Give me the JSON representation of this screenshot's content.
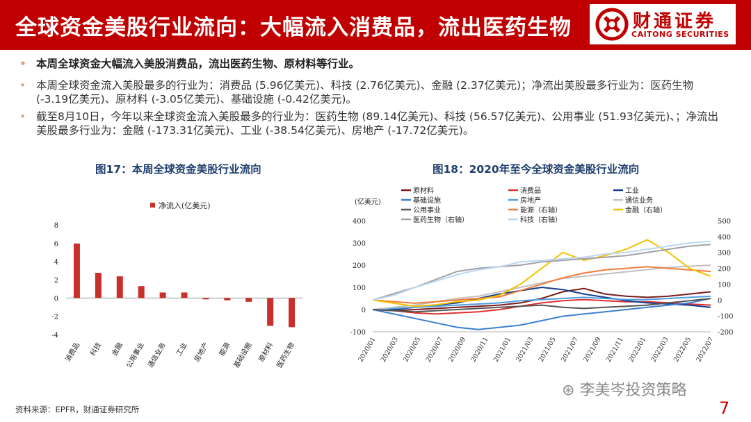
{
  "header": {
    "title": "全球资金美股行业流向：大幅流入消费品，流出医药生物"
  },
  "logo": {
    "name_cn": "财通证券",
    "name_en": "CAITONG SECURITIES"
  },
  "bullets": [
    {
      "text": "本周全球资金大幅流入美股消费品，流出医药生物、原材料等行业。"
    },
    {
      "text": "本周全球资金流入美股最多的行业为：消费品 (5.96亿美元)、科技 (2.76亿美元)、金融 (2.37亿美元)；净流出美股最多行业为：医药生物 (-3.19亿美元)、原材料 (-3.05亿美元)、基础设施 (-0.42亿美元)。"
    },
    {
      "text": "截至8月10日，今年以来全球资金流入美股最多的行业为：医药生物 (89.14亿美元)、科技 (56.57亿美元)、公用事业 (51.93亿美元)、；净流出美股最多行业为：金融 (-173.31亿美元)、工业 (-38.54亿美元)、房地产 (-17.72亿美元)。"
    }
  ],
  "chart_data": [
    {
      "type": "bar",
      "title": "图17：本周全球资金美股行业流向",
      "legend": "净流入(亿美元)",
      "categories": [
        "消费品",
        "科技",
        "金融",
        "公用事业",
        "通信业务",
        "工业",
        "房地产",
        "能源",
        "基础设施",
        "原材料",
        "医药生物"
      ],
      "values": [
        5.96,
        2.76,
        2.37,
        1.3,
        0.6,
        0.6,
        -0.15,
        -0.25,
        -0.42,
        -3.05,
        -3.19
      ],
      "yticks": [
        "8",
        "6",
        "4",
        "2",
        "0",
        "-2",
        "-4"
      ],
      "ylim": [
        -4,
        8
      ],
      "color": "#c9302c"
    },
    {
      "type": "line",
      "title": "图18：2020年至今全球资金美股行业流向",
      "ylabel": "(亿美元)",
      "ylim": [
        -100,
        400
      ],
      "y2lim": [
        -200,
        500
      ],
      "yticks": [
        "400",
        "300",
        "200",
        "100",
        "0",
        "-100"
      ],
      "y2ticks": [
        "500",
        "400",
        "300",
        "200",
        "100",
        "0",
        "-100",
        "-200"
      ],
      "xticks": [
        "2020/01",
        "2020/03",
        "2020/05",
        "2020/07",
        "2020/09",
        "2020/11",
        "2021/01",
        "2021/03",
        "2021/05",
        "2021/07",
        "2021/09",
        "2021/11",
        "2022/01",
        "2022/03",
        "2022/05",
        "2022/07"
      ],
      "legend": [
        "原材料",
        "消费品",
        "工业",
        "基础设施",
        "房地产",
        "通信业务",
        "公用事业",
        "能源（右轴）",
        "金融（右轴）",
        "医药生物（右轴）",
        "科技（右轴）"
      ],
      "series": [
        {
          "name": "原材料",
          "color": "#7b1c1c",
          "axis": "left",
          "values": [
            0,
            -5,
            0,
            5,
            10,
            15,
            20,
            30,
            50,
            80,
            95,
            70,
            60,
            55,
            60,
            70,
            80
          ]
        },
        {
          "name": "消费品",
          "color": "#e03030",
          "axis": "left",
          "values": [
            0,
            -5,
            -15,
            -20,
            -15,
            -10,
            0,
            15,
            30,
            40,
            45,
            40,
            35,
            35,
            30,
            25,
            20
          ]
        },
        {
          "name": "工业",
          "color": "#123e8a",
          "axis": "left",
          "values": [
            0,
            0,
            10,
            20,
            30,
            50,
            70,
            85,
            100,
            90,
            70,
            55,
            40,
            30,
            25,
            20,
            10
          ]
        },
        {
          "name": "基础设施",
          "color": "#3b7fd0",
          "axis": "left",
          "values": [
            0,
            -20,
            -40,
            -60,
            -80,
            -90,
            -80,
            -70,
            -50,
            -30,
            -20,
            -10,
            0,
            10,
            20,
            30,
            50
          ]
        },
        {
          "name": "房地产",
          "color": "#4f9de0",
          "axis": "left",
          "values": [
            0,
            5,
            10,
            15,
            20,
            25,
            30,
            40,
            45,
            50,
            55,
            50,
            45,
            45,
            50,
            55,
            60
          ]
        },
        {
          "name": "通信业务",
          "color": "#c0c0c0",
          "axis": "left",
          "values": [
            0,
            10,
            20,
            35,
            50,
            60,
            80,
            100,
            120,
            140,
            150,
            160,
            170,
            180,
            190,
            195,
            200
          ]
        },
        {
          "name": "公用事业",
          "color": "#555555",
          "axis": "left",
          "values": [
            0,
            -5,
            -10,
            -5,
            0,
            5,
            10,
            15,
            20,
            10,
            5,
            10,
            15,
            20,
            30,
            40,
            50
          ]
        },
        {
          "name": "能源（右轴）",
          "color": "#f07c3c",
          "axis": "right",
          "values": [
            0,
            -10,
            -20,
            -10,
            0,
            10,
            20,
            60,
            100,
            140,
            170,
            190,
            200,
            210,
            200,
            190,
            180
          ]
        },
        {
          "name": "金融（右轴）",
          "color": "#f5c000",
          "axis": "right",
          "values": [
            0,
            -20,
            -40,
            -30,
            -10,
            0,
            30,
            100,
            200,
            300,
            250,
            280,
            320,
            380,
            300,
            200,
            150
          ]
        },
        {
          "name": "医药生物（右轴）",
          "color": "#a0a0a8",
          "axis": "right",
          "values": [
            0,
            40,
            80,
            130,
            180,
            200,
            210,
            220,
            240,
            250,
            260,
            270,
            280,
            300,
            320,
            340,
            350
          ]
        },
        {
          "name": "科技（右轴）",
          "color": "#bcd7f0",
          "axis": "right",
          "values": [
            0,
            30,
            80,
            120,
            160,
            190,
            210,
            240,
            250,
            260,
            270,
            290,
            300,
            320,
            340,
            360,
            370
          ]
        }
      ]
    }
  ],
  "source": "资料来源：EPFR，财通证券研究所",
  "wechat": "李美岑投资策略",
  "page_number": "7"
}
